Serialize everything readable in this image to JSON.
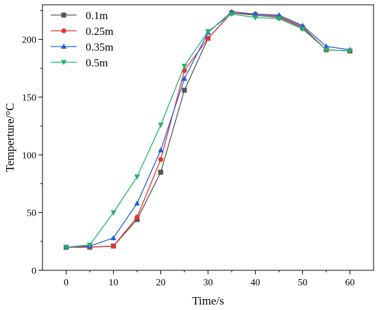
{
  "chart_data": {
    "type": "line",
    "title": "",
    "xlabel": "Time/s",
    "ylabel": "Temperture/°C",
    "xlim": [
      -5,
      65
    ],
    "ylim": [
      0,
      230
    ],
    "xticks": [
      0,
      10,
      20,
      30,
      40,
      50,
      60
    ],
    "yticks": [
      0,
      50,
      100,
      150,
      200
    ],
    "grid": false,
    "legend": "top-left",
    "x": [
      0,
      5,
      10,
      15,
      20,
      25,
      30,
      35,
      40,
      45,
      50,
      55,
      60
    ],
    "series": [
      {
        "name": "0.1m",
        "color": "#555555",
        "marker": "square",
        "values": [
          20,
          20,
          21,
          44,
          85,
          156,
          201,
          223,
          221,
          219,
          210,
          191,
          190
        ]
      },
      {
        "name": "0.25m",
        "color": "#e8312f",
        "marker": "circle",
        "values": [
          20,
          20,
          21,
          46,
          96,
          173,
          201,
          223,
          222,
          220,
          211,
          191,
          190
        ]
      },
      {
        "name": "0.35m",
        "color": "#1f5fe0",
        "marker": "triangle-up",
        "values": [
          20,
          21,
          28,
          58,
          104,
          166,
          206,
          224,
          222,
          221,
          212,
          194,
          191
        ]
      },
      {
        "name": "0.5m",
        "color": "#21b36b",
        "marker": "triangle-down",
        "values": [
          20,
          22,
          50,
          81,
          126,
          177,
          207,
          222,
          219,
          218,
          209,
          191,
          190
        ]
      }
    ]
  }
}
